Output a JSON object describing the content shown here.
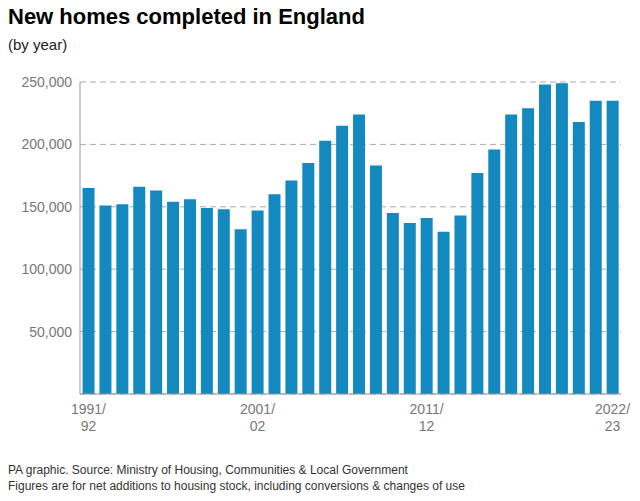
{
  "chart_data": {
    "type": "bar",
    "title": "New homes completed in England",
    "subtitle": "(by year)",
    "categories": [
      "1991/92",
      null,
      null,
      null,
      null,
      null,
      null,
      null,
      null,
      null,
      "2001/02",
      null,
      null,
      null,
      null,
      null,
      null,
      null,
      null,
      null,
      "2011/12",
      null,
      null,
      null,
      null,
      null,
      null,
      null,
      null,
      null,
      null,
      "2022/23"
    ],
    "values": [
      165000,
      151000,
      152000,
      166000,
      163000,
      154000,
      156000,
      149000,
      148000,
      132000,
      147000,
      160000,
      171000,
      185000,
      203000,
      215000,
      224000,
      183000,
      145000,
      137000,
      141000,
      130000,
      143000,
      177000,
      196000,
      224000,
      229000,
      248000,
      249000,
      218000,
      235000,
      235000
    ],
    "color": "#1389c0",
    "ylim": [
      0,
      250000
    ],
    "yticks": [
      {
        "value": 50000,
        "label": "50,000"
      },
      {
        "value": 100000,
        "label": "100,000"
      },
      {
        "value": 150000,
        "label": "150,000"
      },
      {
        "value": 200000,
        "label": "200,000"
      },
      {
        "value": 250000,
        "label": "250,000"
      }
    ],
    "grid": true,
    "notes": [
      "PA graphic. Source: Ministry of Housing, Communities & Local Government",
      "Figures are for net additions to housing stock, including conversions & changes of use"
    ]
  }
}
